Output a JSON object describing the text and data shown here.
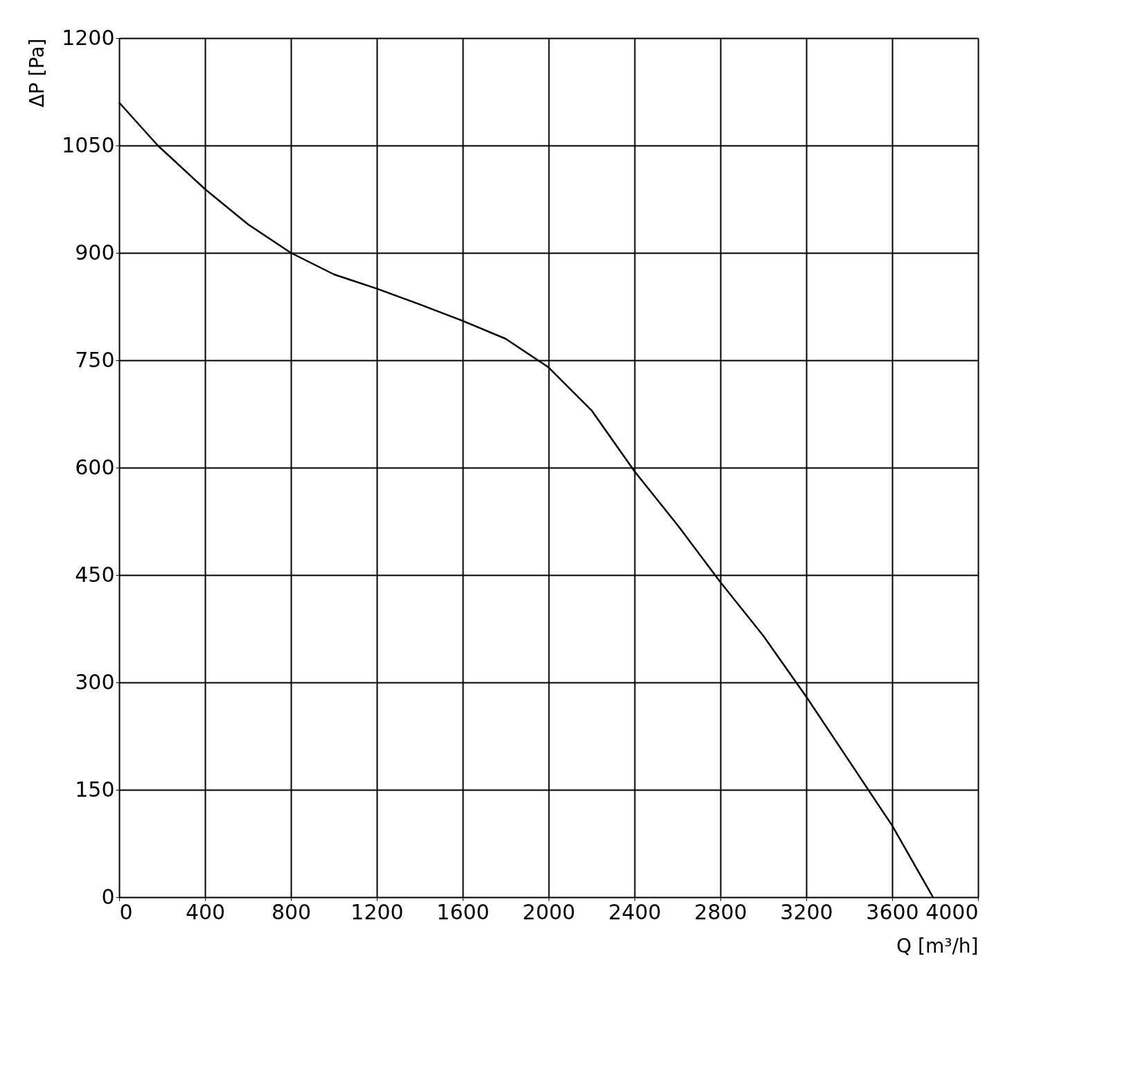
{
  "chart_data": {
    "type": "line",
    "xlabel": "Q [m³/h]",
    "ylabel": "ΔP [Pa]",
    "series": [
      {
        "color": "#000000",
        "x": [
          0,
          180,
          400,
          600,
          800,
          1000,
          1200,
          1400,
          1600,
          1800,
          2000,
          2200,
          2400,
          2600,
          2800,
          3000,
          3200,
          3400,
          3600,
          3790
        ],
        "values": [
          1110,
          1050,
          989,
          940,
          900,
          870,
          850,
          828,
          805,
          780,
          740,
          680,
          595,
          520,
          440,
          365,
          280,
          190,
          100,
          0
        ]
      }
    ],
    "xlim": [
      0,
      4000
    ],
    "xticks": [
      0,
      400,
      800,
      1200,
      1600,
      2000,
      2400,
      2800,
      3200,
      3600,
      4000
    ],
    "ylim": [
      0,
      1200
    ],
    "yticks": [
      0,
      150,
      300,
      450,
      600,
      750,
      900,
      1050,
      1200
    ],
    "grid": true,
    "marker": "none",
    "line_style": "solid",
    "legend": false
  }
}
